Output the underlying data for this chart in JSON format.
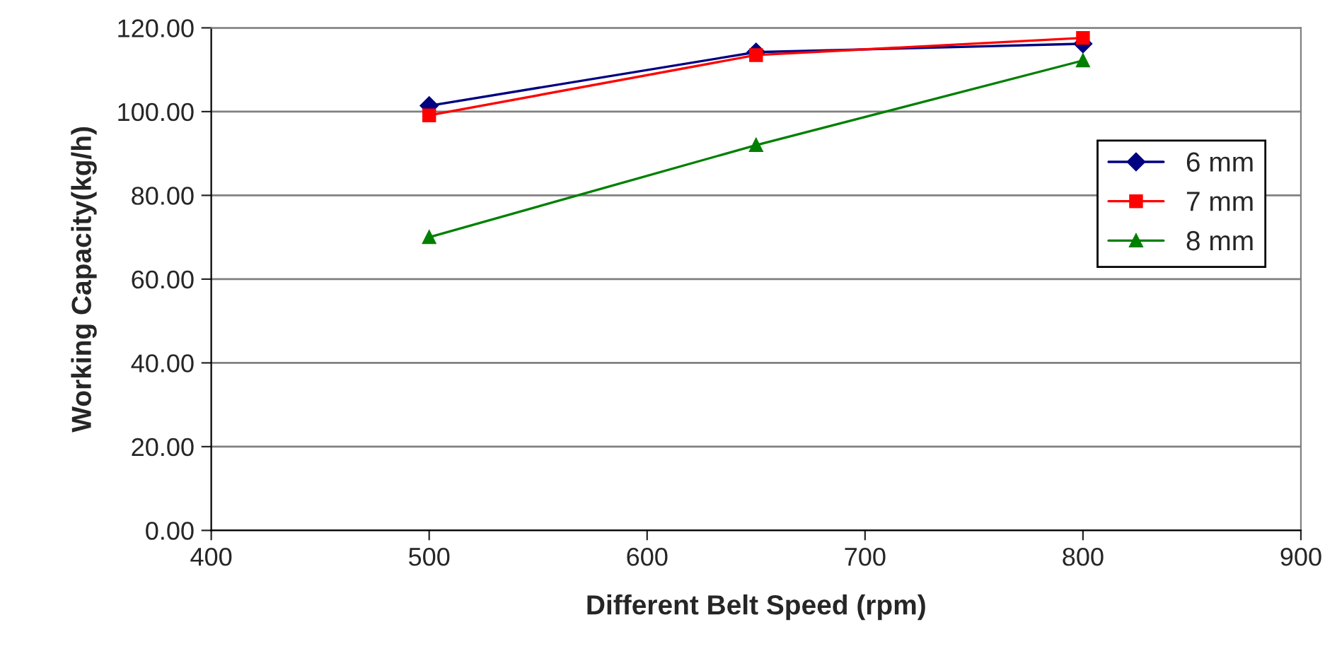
{
  "chart_data": {
    "type": "line",
    "xlabel": "Different Belt Speed (rpm)",
    "ylabel": "Working Capacity(kg/h)",
    "x": [
      500,
      650,
      800
    ],
    "series": [
      {
        "name": "6 mm",
        "color": "#000080",
        "values": [
          101.4,
          114.2,
          116.2
        ],
        "marker": "diamond"
      },
      {
        "name": "7 mm",
        "color": "#ff0000",
        "values": [
          99.1,
          113.5,
          117.6
        ],
        "marker": "square"
      },
      {
        "name": "8 mm",
        "color": "#008000",
        "values": [
          70.0,
          92.0,
          112.2
        ],
        "marker": "triangle"
      }
    ],
    "xlim": [
      400,
      900
    ],
    "xticks": [
      400,
      500,
      600,
      700,
      800,
      900
    ],
    "ylim": [
      0,
      120
    ],
    "yticks": [
      {
        "value": 0,
        "label": "0.00"
      },
      {
        "value": 20,
        "label": "20.00"
      },
      {
        "value": 40,
        "label": "40.00"
      },
      {
        "value": 60,
        "label": "60.00"
      },
      {
        "value": 80,
        "label": "80.00"
      },
      {
        "value": 100,
        "label": "100.00"
      },
      {
        "value": 120,
        "label": "120.00"
      }
    ],
    "grid": "y",
    "legend": "right",
    "line_style": "solid"
  }
}
